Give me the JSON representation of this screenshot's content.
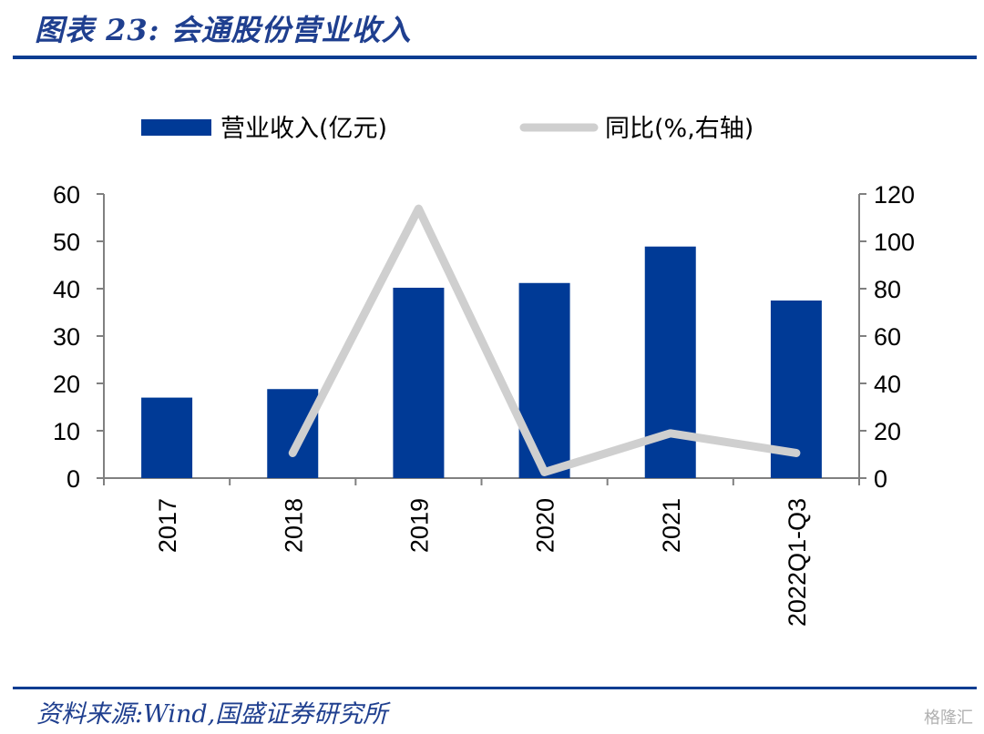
{
  "title": "图表 23: 会通股份营业收入",
  "source": "资料来源:Wind,国盛证券研究所",
  "watermark": "格隆汇",
  "colors": {
    "bar": "#003a96",
    "line": "#cfcfcf",
    "accent": "#0b3d91"
  },
  "chart_data": {
    "type": "bar",
    "categories": [
      "2017",
      "2018",
      "2019",
      "2020",
      "2021",
      "2022Q1-Q3"
    ],
    "series": [
      {
        "name": "营业收入(亿元)",
        "type": "bar",
        "axis": "left",
        "values": [
          17.0,
          18.8,
          40.2,
          41.2,
          48.9,
          37.5
        ]
      },
      {
        "name": "同比(%,右轴)",
        "type": "line",
        "axis": "right",
        "values": [
          null,
          10.6,
          113.8,
          2.5,
          18.9,
          10.6
        ]
      }
    ],
    "y_left": {
      "lim": [
        0,
        60
      ],
      "ticks": [
        "0",
        "10",
        "20",
        "30",
        "40",
        "50",
        "60"
      ]
    },
    "y_right": {
      "lim": [
        0,
        120
      ],
      "ticks": [
        "0",
        "20",
        "40",
        "60",
        "80",
        "100",
        "120"
      ]
    },
    "legend_position": "top",
    "grid": false
  }
}
